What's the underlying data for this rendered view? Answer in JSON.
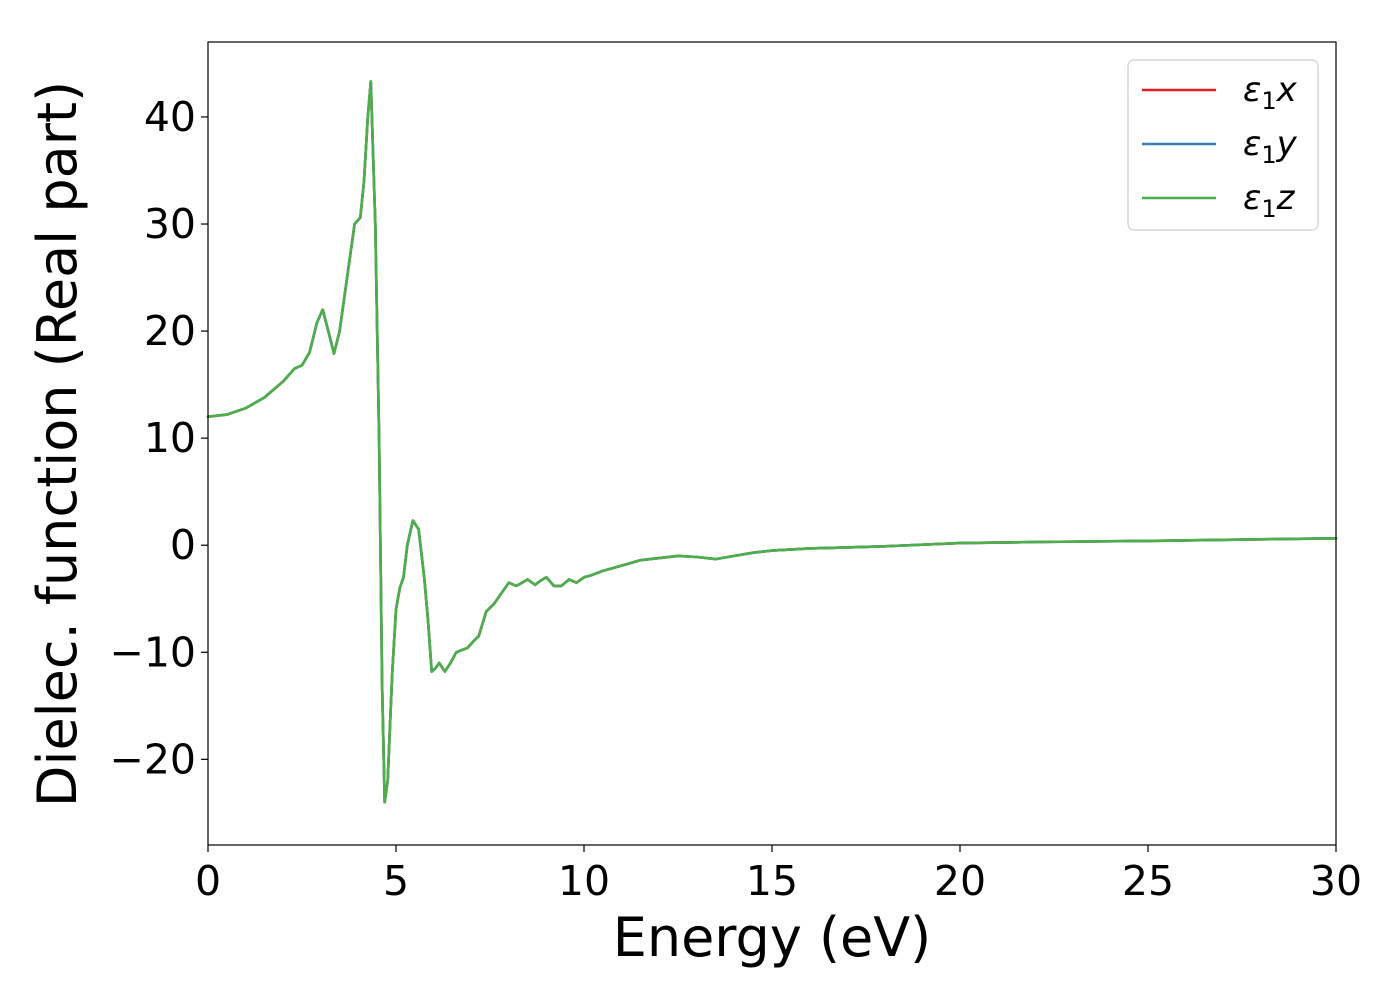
{
  "chart_data": {
    "type": "line",
    "title": "",
    "xlabel": "Energy (eV)",
    "ylabel": "Dielec. function (Real part)",
    "xlim": [
      0,
      30
    ],
    "ylim": [
      -28,
      47
    ],
    "xticks": [
      {
        "value": 0,
        "label": "0"
      },
      {
        "value": 5,
        "label": "5"
      },
      {
        "value": 10,
        "label": "10"
      },
      {
        "value": 15,
        "label": "15"
      },
      {
        "value": 20,
        "label": "20"
      },
      {
        "value": 25,
        "label": "25"
      },
      {
        "value": 30,
        "label": "30"
      }
    ],
    "yticks": [
      {
        "value": -20,
        "label": "−20"
      },
      {
        "value": -10,
        "label": "−10"
      },
      {
        "value": 0,
        "label": "0"
      },
      {
        "value": 10,
        "label": "10"
      },
      {
        "value": 20,
        "label": "20"
      },
      {
        "value": 30,
        "label": "30"
      },
      {
        "value": 40,
        "label": "40"
      }
    ],
    "grid": false,
    "legend": "top-right",
    "series": [
      {
        "name": "ε1x",
        "symbol": "ε",
        "sub": "1",
        "axis": "x",
        "color": "#e41a1c",
        "x": [
          0,
          0.5,
          1.0,
          1.5,
          2.0,
          2.3,
          2.5,
          2.7,
          2.9,
          3.05,
          3.2,
          3.35,
          3.5,
          3.7,
          3.9,
          4.05,
          4.15,
          4.25,
          4.33,
          4.45,
          4.55,
          4.63,
          4.7,
          4.78,
          4.9,
          5.0,
          5.1,
          5.2,
          5.3,
          5.45,
          5.6,
          5.75,
          5.85,
          5.95,
          6.05,
          6.15,
          6.3,
          6.45,
          6.6,
          6.75,
          6.9,
          7.05,
          7.2,
          7.4,
          7.6,
          7.8,
          8.0,
          8.2,
          8.35,
          8.5,
          8.7,
          8.85,
          9.0,
          9.2,
          9.4,
          9.6,
          9.8,
          10.0,
          10.2,
          10.5,
          11.0,
          11.5,
          12.0,
          12.5,
          13.0,
          13.5,
          14.0,
          14.5,
          15.0,
          16.0,
          17.0,
          18.0,
          20.0,
          22.0,
          25.0,
          28.0,
          30.0
        ],
        "y": [
          12.0,
          12.2,
          12.8,
          13.8,
          15.3,
          16.5,
          16.8,
          18.0,
          20.8,
          22.0,
          20.0,
          17.9,
          20.0,
          25.0,
          30.0,
          30.6,
          34.0,
          40.0,
          43.3,
          30.0,
          10.0,
          -13.0,
          -24.0,
          -22.0,
          -12.0,
          -6.0,
          -4.0,
          -3.0,
          0.0,
          2.3,
          1.5,
          -3.0,
          -7.0,
          -11.8,
          -11.5,
          -11.0,
          -11.8,
          -11.0,
          -10.0,
          -9.8,
          -9.6,
          -9.0,
          -8.5,
          -6.2,
          -5.5,
          -4.5,
          -3.5,
          -3.8,
          -3.5,
          -3.2,
          -3.7,
          -3.3,
          -3.0,
          -3.8,
          -3.8,
          -3.2,
          -3.5,
          -3.0,
          -2.8,
          -2.4,
          -1.9,
          -1.4,
          -1.2,
          -1.0,
          -1.1,
          -1.3,
          -1.0,
          -0.7,
          -0.5,
          -0.3,
          -0.2,
          -0.1,
          0.2,
          0.3,
          0.4,
          0.55,
          0.65
        ]
      },
      {
        "name": "ε1y",
        "symbol": "ε",
        "sub": "1",
        "axis": "y",
        "color": "#377eb8",
        "x": [
          0,
          0.5,
          1.0,
          1.5,
          2.0,
          2.3,
          2.5,
          2.7,
          2.9,
          3.05,
          3.2,
          3.35,
          3.5,
          3.7,
          3.9,
          4.05,
          4.15,
          4.25,
          4.33,
          4.45,
          4.55,
          4.63,
          4.7,
          4.78,
          4.9,
          5.0,
          5.1,
          5.2,
          5.3,
          5.45,
          5.6,
          5.75,
          5.85,
          5.95,
          6.05,
          6.15,
          6.3,
          6.45,
          6.6,
          6.75,
          6.9,
          7.05,
          7.2,
          7.4,
          7.6,
          7.8,
          8.0,
          8.2,
          8.35,
          8.5,
          8.7,
          8.85,
          9.0,
          9.2,
          9.4,
          9.6,
          9.8,
          10.0,
          10.2,
          10.5,
          11.0,
          11.5,
          12.0,
          12.5,
          13.0,
          13.5,
          14.0,
          14.5,
          15.0,
          16.0,
          17.0,
          18.0,
          20.0,
          22.0,
          25.0,
          28.0,
          30.0
        ],
        "y": [
          12.0,
          12.2,
          12.8,
          13.8,
          15.3,
          16.5,
          16.8,
          18.0,
          20.8,
          22.0,
          20.0,
          17.9,
          20.0,
          25.0,
          30.0,
          30.6,
          34.0,
          40.0,
          43.3,
          30.0,
          10.0,
          -13.0,
          -24.0,
          -22.0,
          -12.0,
          -6.0,
          -4.0,
          -3.0,
          0.0,
          2.3,
          1.5,
          -3.0,
          -7.0,
          -11.8,
          -11.5,
          -11.0,
          -11.8,
          -11.0,
          -10.0,
          -9.8,
          -9.6,
          -9.0,
          -8.5,
          -6.2,
          -5.5,
          -4.5,
          -3.5,
          -3.8,
          -3.5,
          -3.2,
          -3.7,
          -3.3,
          -3.0,
          -3.8,
          -3.8,
          -3.2,
          -3.5,
          -3.0,
          -2.8,
          -2.4,
          -1.9,
          -1.4,
          -1.2,
          -1.0,
          -1.1,
          -1.3,
          -1.0,
          -0.7,
          -0.5,
          -0.3,
          -0.2,
          -0.1,
          0.2,
          0.3,
          0.4,
          0.55,
          0.65
        ]
      },
      {
        "name": "ε1z",
        "symbol": "ε",
        "sub": "1",
        "axis": "z",
        "color": "#4daf4a",
        "x": [
          0,
          0.5,
          1.0,
          1.5,
          2.0,
          2.3,
          2.5,
          2.7,
          2.9,
          3.05,
          3.2,
          3.35,
          3.5,
          3.7,
          3.9,
          4.05,
          4.15,
          4.25,
          4.33,
          4.45,
          4.55,
          4.63,
          4.7,
          4.78,
          4.9,
          5.0,
          5.1,
          5.2,
          5.3,
          5.45,
          5.6,
          5.75,
          5.85,
          5.95,
          6.05,
          6.15,
          6.3,
          6.45,
          6.6,
          6.75,
          6.9,
          7.05,
          7.2,
          7.4,
          7.6,
          7.8,
          8.0,
          8.2,
          8.35,
          8.5,
          8.7,
          8.85,
          9.0,
          9.2,
          9.4,
          9.6,
          9.8,
          10.0,
          10.2,
          10.5,
          11.0,
          11.5,
          12.0,
          12.5,
          13.0,
          13.5,
          14.0,
          14.5,
          15.0,
          16.0,
          17.0,
          18.0,
          20.0,
          22.0,
          25.0,
          28.0,
          30.0
        ],
        "y": [
          12.0,
          12.2,
          12.8,
          13.8,
          15.3,
          16.5,
          16.8,
          18.0,
          20.8,
          22.0,
          20.0,
          17.9,
          20.0,
          25.0,
          30.0,
          30.6,
          34.0,
          40.0,
          43.3,
          30.0,
          10.0,
          -13.0,
          -24.0,
          -22.0,
          -12.0,
          -6.0,
          -4.0,
          -3.0,
          0.0,
          2.3,
          1.5,
          -3.0,
          -7.0,
          -11.8,
          -11.5,
          -11.0,
          -11.8,
          -11.0,
          -10.0,
          -9.8,
          -9.6,
          -9.0,
          -8.5,
          -6.2,
          -5.5,
          -4.5,
          -3.5,
          -3.8,
          -3.5,
          -3.2,
          -3.7,
          -3.3,
          -3.0,
          -3.8,
          -3.8,
          -3.2,
          -3.5,
          -3.0,
          -2.8,
          -2.4,
          -1.9,
          -1.4,
          -1.2,
          -1.0,
          -1.1,
          -1.3,
          -1.0,
          -0.7,
          -0.5,
          -0.3,
          -0.2,
          -0.1,
          0.2,
          0.3,
          0.4,
          0.55,
          0.65
        ]
      }
    ]
  }
}
